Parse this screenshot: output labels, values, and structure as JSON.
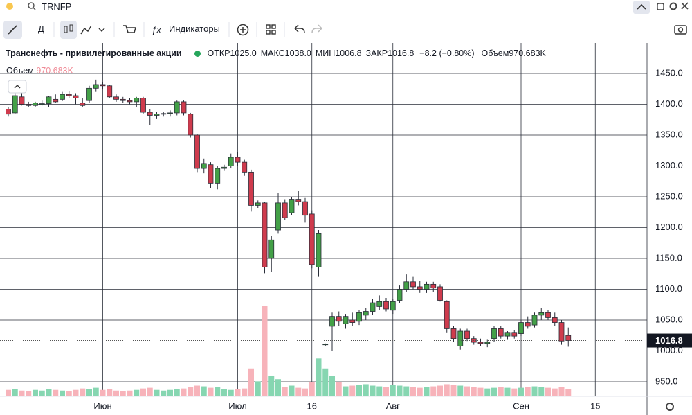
{
  "ui": {
    "symbol": "TRNFP",
    "interval": "Д",
    "indicators": "Индикаторы"
  },
  "chart_data": {
    "type": "candlestick",
    "title": "Транснефть - привилегированные акции",
    "legend_items": [
      {
        "label": "ОТКР",
        "value": "1025.0"
      },
      {
        "label": "МАКС",
        "value": "1038.0"
      },
      {
        "label": "МИН",
        "value": "1006.8"
      },
      {
        "label": "ЗАКР",
        "value": "1016.8"
      }
    ],
    "change": "−8.2 (−0.80%)",
    "volume_title": "Объем",
    "volume_value_label": "970.683K",
    "up_color": "#43a047",
    "down_color": "#cf3b4d",
    "volume_up_color": "#86d6b1",
    "volume_down_color": "#f7b3ba",
    "grid": true,
    "ylim": [
      926.4,
      1499.4
    ],
    "yticks": [
      {
        "value": 950,
        "label": "950.0"
      },
      {
        "value": 1000,
        "label": "1000.0"
      },
      {
        "value": 1050,
        "label": "1050.0"
      },
      {
        "value": 1100,
        "label": "1100.0"
      },
      {
        "value": 1150,
        "label": "1150.0"
      },
      {
        "value": 1200,
        "label": "1200.0"
      },
      {
        "value": 1250,
        "label": "1250.0"
      },
      {
        "value": 1300,
        "label": "1300.0"
      },
      {
        "value": 1350,
        "label": "1350.0"
      },
      {
        "value": 1400,
        "label": "1400.0"
      },
      {
        "value": 1450,
        "label": "1450.0"
      }
    ],
    "last_price": {
      "value": 1016.8,
      "label": "1016.8"
    },
    "categories": [
      null,
      null,
      null,
      null,
      null,
      null,
      null,
      null,
      null,
      null,
      null,
      null,
      null,
      null,
      "Июн",
      null,
      null,
      null,
      null,
      null,
      null,
      null,
      null,
      null,
      null,
      null,
      null,
      null,
      null,
      null,
      null,
      null,
      null,
      null,
      "Июл",
      null,
      null,
      null,
      null,
      null,
      null,
      null,
      null,
      null,
      null,
      "16",
      null,
      null,
      null,
      null,
      null,
      null,
      null,
      null,
      null,
      null,
      null,
      "Авг",
      null,
      null,
      null,
      null,
      null,
      null,
      null,
      null,
      null,
      null,
      null,
      null,
      null,
      null,
      null,
      null,
      null,
      null,
      "Сен",
      null,
      null,
      null,
      null,
      null,
      null,
      null,
      null,
      null,
      null,
      "15"
    ],
    "open": [
      1392,
      1386,
      1412,
      1400,
      1398,
      1400,
      1401,
      1408,
      1408,
      1416,
      1414,
      1402,
      1406,
      1426,
      1432,
      1430,
      1412,
      1408,
      1406,
      1404,
      1410,
      1387,
      1382,
      1384,
      1385,
      1386,
      1404,
      1384,
      1350,
      1296,
      1302,
      1272,
      1296,
      1300,
      1314,
      1306,
      1290,
      1236,
      1240,
      1150,
      1196,
      1240,
      1224,
      1246,
      1242,
      1222,
      1136,
      1010,
      1040,
      1056,
      1044,
      1050,
      1048,
      1058,
      1064,
      1072,
      1080,
      1066,
      1082,
      1100,
      1112,
      1104,
      1100,
      1108,
      1104,
      1080,
      1036,
      1008,
      1032,
      1020,
      1014,
      1012,
      1020,
      1036,
      1024,
      1030,
      1028,
      1046,
      1042,
      1058,
      1062,
      1054,
      1046,
      1025,
      null,
      null,
      null,
      null
    ],
    "high": [
      1396,
      1418,
      1418,
      1404,
      1404,
      1406,
      1414,
      1416,
      1420,
      1421,
      1418,
      1410,
      1430,
      1440,
      1436,
      1432,
      1416,
      1412,
      1410,
      1412,
      1412,
      1392,
      1388,
      1388,
      1390,
      1406,
      1406,
      1386,
      1352,
      1312,
      1306,
      1300,
      1302,
      1320,
      1322,
      1310,
      1294,
      1244,
      1242,
      1186,
      1256,
      1246,
      1250,
      1260,
      1248,
      1228,
      1196,
      1012,
      1062,
      1064,
      1060,
      1062,
      1066,
      1070,
      1084,
      1090,
      1086,
      1084,
      1106,
      1124,
      1120,
      1114,
      1112,
      1112,
      1108,
      1082,
      1040,
      1036,
      1036,
      1024,
      1020,
      1018,
      1040,
      1040,
      1032,
      1034,
      1050,
      1056,
      1062,
      1070,
      1066,
      1062,
      1050,
      1038,
      null,
      null,
      null,
      null
    ],
    "low": [
      1380,
      1384,
      1398,
      1395,
      1396,
      1398,
      1396,
      1402,
      1405,
      1410,
      1400,
      1396,
      1402,
      1420,
      1425,
      1410,
      1404,
      1402,
      1400,
      1396,
      1385,
      1366,
      1376,
      1380,
      1380,
      1382,
      1382,
      1346,
      1290,
      1288,
      1264,
      1262,
      1292,
      1296,
      1300,
      1284,
      1226,
      1232,
      1126,
      1128,
      1190,
      1212,
      1220,
      1236,
      1208,
      1134,
      1120,
      1008,
      1000,
      1040,
      1036,
      1040,
      1042,
      1050,
      1058,
      1066,
      1064,
      1060,
      1078,
      1096,
      1100,
      1094,
      1094,
      1096,
      1080,
      1030,
      1014,
      1002,
      1016,
      1010,
      1008,
      1006,
      1014,
      1020,
      1018,
      1020,
      1024,
      1036,
      1038,
      1050,
      1050,
      1040,
      1010,
      1006.8,
      null,
      null,
      null,
      null
    ],
    "close": [
      1384,
      1414,
      1400,
      1398,
      1402,
      1401,
      1412,
      1404,
      1416,
      1414,
      1410,
      1398,
      1426,
      1432,
      1430,
      1412,
      1408,
      1406,
      1404,
      1410,
      1387,
      1382,
      1384,
      1385,
      1386,
      1404,
      1386,
      1350,
      1296,
      1304,
      1272,
      1296,
      1298,
      1314,
      1306,
      1290,
      1236,
      1240,
      1136,
      1180,
      1240,
      1216,
      1246,
      1242,
      1220,
      1140,
      1190,
      1011,
      1056,
      1048,
      1056,
      1046,
      1062,
      1064,
      1078,
      1080,
      1068,
      1080,
      1100,
      1112,
      1104,
      1100,
      1108,
      1102,
      1082,
      1036,
      1020,
      1032,
      1020,
      1014,
      1012,
      1014,
      1036,
      1024,
      1030,
      1024,
      1046,
      1040,
      1058,
      1062,
      1054,
      1046,
      1016,
      1016.8,
      null,
      null,
      null,
      null
    ],
    "volume": [
      900000,
      1000000,
      800000,
      700000,
      900000,
      800000,
      1000000,
      900000,
      800000,
      700000,
      900000,
      1100000,
      1000000,
      1200000,
      900000,
      1000000,
      800000,
      700000,
      800000,
      900000,
      1100000,
      1200000,
      900000,
      800000,
      900000,
      1000000,
      1100000,
      1300000,
      1500000,
      1400000,
      1200000,
      1300000,
      1000000,
      900000,
      1000000,
      1100000,
      3900000,
      2100000,
      12600000,
      2900000,
      2400000,
      1300000,
      1500000,
      1200000,
      1100000,
      2000000,
      5300000,
      3900000,
      2900000,
      2000000,
      1400000,
      1500000,
      1600000,
      1700000,
      1500000,
      1400000,
      1300000,
      1600000,
      1500000,
      1400000,
      1300000,
      1200000,
      1300000,
      1400000,
      1500000,
      1700000,
      1600000,
      1500000,
      1400000,
      1300000,
      1200000,
      1100000,
      1200000,
      1300000,
      1200000,
      1100000,
      1200000,
      1300000,
      1400000,
      1300000,
      1200000,
      1100000,
      1300000,
      970683,
      null,
      null,
      null,
      null
    ]
  }
}
